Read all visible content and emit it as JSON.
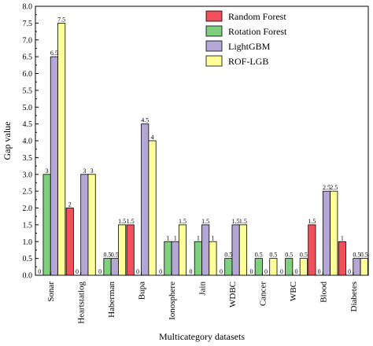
{
  "chart_data": {
    "type": "bar",
    "xlabel": "Multicategory datasets",
    "ylabel": "Gap value",
    "ylim": [
      0,
      8
    ],
    "yticks": [
      "0.0",
      "0.5",
      "1.0",
      "1.5",
      "2.0",
      "2.5",
      "3.0",
      "3.5",
      "4.0",
      "4.5",
      "5.0",
      "5.5",
      "6.0",
      "6.5",
      "7.0",
      "7.5",
      "8.0"
    ],
    "categories": [
      "Sonar",
      "Heartstatlog",
      "Haberman",
      "Bupa",
      "Ionosphere",
      "Jain",
      "WDBC",
      "Cancer",
      "WBC",
      "Blood",
      "Diabetes"
    ],
    "legend_position": "top-right",
    "grid": false,
    "series": [
      {
        "name": "Random Forest",
        "color": "#f0505a",
        "values": [
          0,
          2,
          0,
          1.5,
          0,
          0,
          0,
          0,
          0,
          1.5,
          1
        ],
        "labels": [
          "0",
          "2",
          "0",
          "1.5",
          "0",
          "0",
          "0",
          "0",
          "0",
          "1.5",
          "1"
        ]
      },
      {
        "name": "Rotation Forest",
        "color": "#7fcf7f",
        "values": [
          3,
          0,
          0.5,
          0,
          1,
          1,
          0.5,
          0.5,
          0.5,
          0,
          0
        ],
        "labels": [
          "3",
          "0",
          "0.5",
          "0",
          "1",
          "1",
          "0.5",
          "0.5",
          "0.5",
          "0",
          "0"
        ]
      },
      {
        "name": "LightGBM",
        "color": "#b4a7d6",
        "values": [
          6.5,
          3,
          0.5,
          4.5,
          1,
          1.5,
          1.5,
          0,
          0,
          2.5,
          0.5
        ],
        "labels": [
          "6.5",
          "3",
          "0.5",
          "4.5",
          "1",
          "1.5",
          "1.5",
          "0",
          "0",
          "2.5",
          "0.5"
        ]
      },
      {
        "name": "ROF-LGB",
        "color": "#ffff99",
        "values": [
          7.5,
          3,
          1.5,
          4,
          1.5,
          1,
          1.5,
          0.5,
          0.5,
          2.5,
          0.5
        ],
        "labels": [
          "7.5",
          "3",
          "1.5",
          "4",
          "1.5",
          "1",
          "1.5",
          "0.5",
          "0.5",
          "2.5",
          "0.5"
        ]
      }
    ]
  }
}
